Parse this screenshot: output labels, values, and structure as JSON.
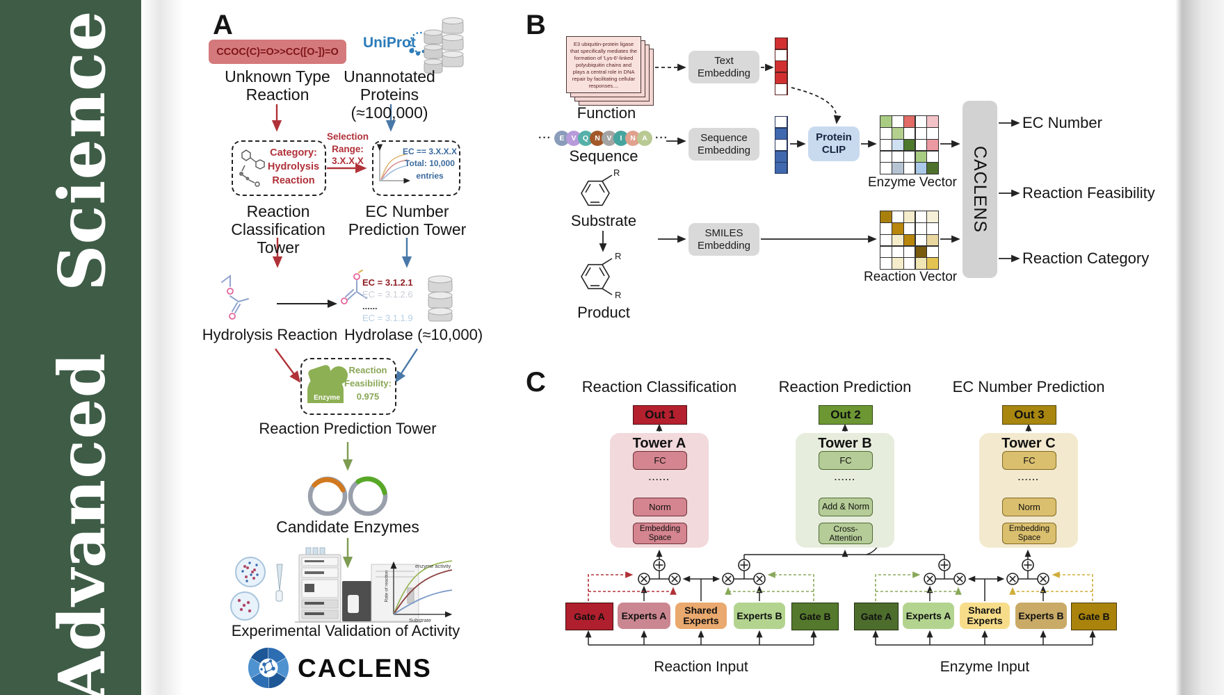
{
  "colors": {
    "sidebar_green": "#3e5c46",
    "arrow_red": "#b03238",
    "arrow_blue": "#4878a8",
    "arrow_green": "#7d9c52",
    "uniprot_blue": "#2b7bb9",
    "smiles_box_bg": "#d4797c",
    "tower_a_bg": "#f2d9dc",
    "tower_b_bg": "#e7eddd",
    "tower_c_bg": "#f3e9ce",
    "out1": "#b5202e",
    "out2": "#6d9733",
    "out3": "#a8860f",
    "gate_a_left": "#b01f2d",
    "gate_b_left": "#55792c",
    "shared_left": "#eaa96e",
    "gate_a_right": "#4d6d2d",
    "gate_b_right": "#a9830c",
    "shared_right": "#f7dd8a",
    "protein_clip_bg": "#c8daee",
    "caclens_bar_bg": "#d2d2d2"
  },
  "journal": {
    "name": "Advanced Science"
  },
  "panelA": {
    "label": "A",
    "smiles": "CCOC(C)=O>>CC([O-])=O",
    "unknown_reaction": "Unknown Type\nReaction",
    "uniprot": "UniProt",
    "unannotated_proteins": "Unannotated\nProteins (≈100,000)",
    "category_box": "Category:\nHydrolysis\nReaction",
    "selection_range": "Selection\nRange:\n3.X.X.X",
    "ec_filter_box": "EC == 3.X.X.X\nTotal: 10,000\nentries",
    "classification_tower": "Reaction\nClassification Tower",
    "ec_tower": "EC Number\nPrediction Tower",
    "ec_list": [
      {
        "text": "EC = 3.1.2.1",
        "color": "#8f1d22",
        "bold": true
      },
      {
        "text": "EC = 3.1.2.6",
        "color": "#c9cdd6",
        "bold": false
      },
      {
        "text": "......",
        "color": "#3a3a3a",
        "bold": true
      },
      {
        "text": "EC = 3.1.1.9",
        "color": "#b7cfe3",
        "bold": false
      }
    ],
    "hydrolysis_reaction": "Hydrolysis Reaction",
    "hydrolase": "Hydrolase (≈10,000)",
    "enzyme_icon_label": "Enzyme",
    "feasibility": "Reaction\nFeasibility:\n0.975",
    "prediction_tower": "Reaction Prediction Tower",
    "candidate_enzymes": "Candidate Enzymes",
    "activity_chart": {
      "curve_label": "enzyme activity",
      "ylabel": "Rate of reaction",
      "xlabel": "Substrate"
    },
    "validation": "Experimental Validation of Activity",
    "brand": "CACLENS"
  },
  "panelB": {
    "label": "B",
    "function_card": "E3 ubiquitin-protein ligase that specifically mediates the formation of 'Lys-6'-linked polyubiquitin chains and plays a central role in DNA repair by facilitating cellular responses....",
    "function_label": "Function",
    "dots": "···",
    "beads": [
      {
        "ch": "E",
        "color": "#8a9cba"
      },
      {
        "ch": "V",
        "color": "#b79ada"
      },
      {
        "ch": "Q",
        "color": "#55b0a8"
      },
      {
        "ch": "N",
        "color": "#a3582a"
      },
      {
        "ch": "V",
        "color": "#a4a4a4"
      },
      {
        "ch": "I",
        "color": "#46a49e"
      },
      {
        "ch": "N",
        "color": "#e0a18f"
      },
      {
        "ch": "A",
        "color": "#b9c993"
      }
    ],
    "sequence_label": "Sequence",
    "substrate_label": "Substrate",
    "product_label": "Product",
    "r_group": "R",
    "text_embedding": "Text\nEmbedding",
    "sequence_embedding": "Sequence\nEmbedding",
    "smiles_embedding": "SMILES\nEmbedding",
    "protein_clip": "Protein\nCLIP",
    "text_vector": [
      "#d23030",
      "#ffffff",
      "#d23030",
      "#d23030",
      "#ffffff"
    ],
    "sequence_vector": [
      "#ffffff",
      "#3f68ae",
      "#ffffff",
      "#3f68ae",
      "#3f68ae"
    ],
    "enzyme_matrix": [
      "#a9cc83",
      "#ffffff",
      "#e26b66",
      "#ffffff",
      "#f3c3c8",
      "#ffffff",
      "#b3d08e",
      "#ffffff",
      "#ffffff",
      "#ffffff",
      "#ffffff",
      "#cfe0f2",
      "#4f7a2e",
      "#ffffff",
      "#ec9aa1",
      "#ffffff",
      "#ffffff",
      "#ffffff",
      "#a9cc83",
      "#ffffff",
      "#ffffff",
      "#b6c3d3",
      "#ffffff",
      "#abc9e9",
      "#4f702c"
    ],
    "reaction_matrix": [
      "#a9800e",
      "#ffffff",
      "#f4ecca",
      "#ffffff",
      "#f6f0d8",
      "#ffffff",
      "#b8860b",
      "#ffffff",
      "#ffffff",
      "#ffffff",
      "#ffffff",
      "#f4ecca",
      "#b8860b",
      "#ffffff",
      "#e9d79f",
      "#ffffff",
      "#ffffff",
      "#ffffff",
      "#7a5a0e",
      "#ffffff",
      "#ffffff",
      "#f4ecca",
      "#ffffff",
      "#f0e5b4",
      "#e3c453"
    ],
    "enzyme_vector_label": "Enzyme Vector",
    "reaction_vector_label": "Reaction Vector",
    "caclens": "CACLENS",
    "outputs": [
      "EC Number",
      "Reaction Feasibility",
      "Reaction Category"
    ]
  },
  "panelC": {
    "label": "C",
    "sections": [
      {
        "title": "Reaction Classification",
        "out": "Out 1",
        "tower": "Tower A",
        "fc": "FC",
        "dots": "......",
        "mid": "Norm",
        "bottom": "Embedding\nSpace"
      },
      {
        "title": "Reaction Prediction",
        "out": "Out 2",
        "tower": "Tower B",
        "fc": "FC",
        "dots": "......",
        "mid": "Add & Norm",
        "bottom": "Cross-\nAttention"
      },
      {
        "title": "EC Number Prediction",
        "out": "Out 3",
        "tower": "Tower C",
        "fc": "FC",
        "dots": "......",
        "mid": "Norm",
        "bottom": "Embedding\nSpace"
      }
    ],
    "moe_left": {
      "gate_a": "Gate A",
      "experts_a": "Experts A",
      "shared": "Shared\nExperts",
      "experts_b": "Experts B",
      "gate_b": "Gate B",
      "input": "Reaction Input"
    },
    "moe_right": {
      "gate_a": "Gate A",
      "experts_a": "Experts A",
      "shared": "Shared\nExperts",
      "experts_b": "Experts B",
      "gate_b": "Gate B",
      "input": "Enzyme Input"
    }
  }
}
